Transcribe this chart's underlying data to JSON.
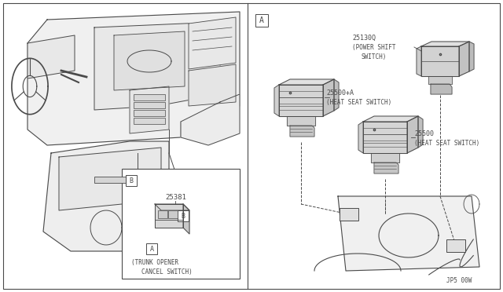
{
  "bg_color": "#ffffff",
  "line_color": "#4a4a4a",
  "text_color": "#4a4a4a",
  "fig_width": 6.4,
  "fig_height": 3.72,
  "dpi": 100,
  "labels": {
    "A_box": "A",
    "B_box": "B",
    "part1_num": "25130Q",
    "part1_name1": "(POWER SHIFT",
    "part1_name2": "SWITCH)",
    "part2_num": "25500+A",
    "part2_name": "(HEAT SEAT SWITCH)",
    "part3_num": "25500",
    "part3_name": "(HEAT SEAT SWITCH)",
    "part4_num": "25381",
    "part4_name1": "(TRUNK OPENER",
    "part4_name2": "CANCEL SWITCH)",
    "watermark": "JP5 00W"
  }
}
